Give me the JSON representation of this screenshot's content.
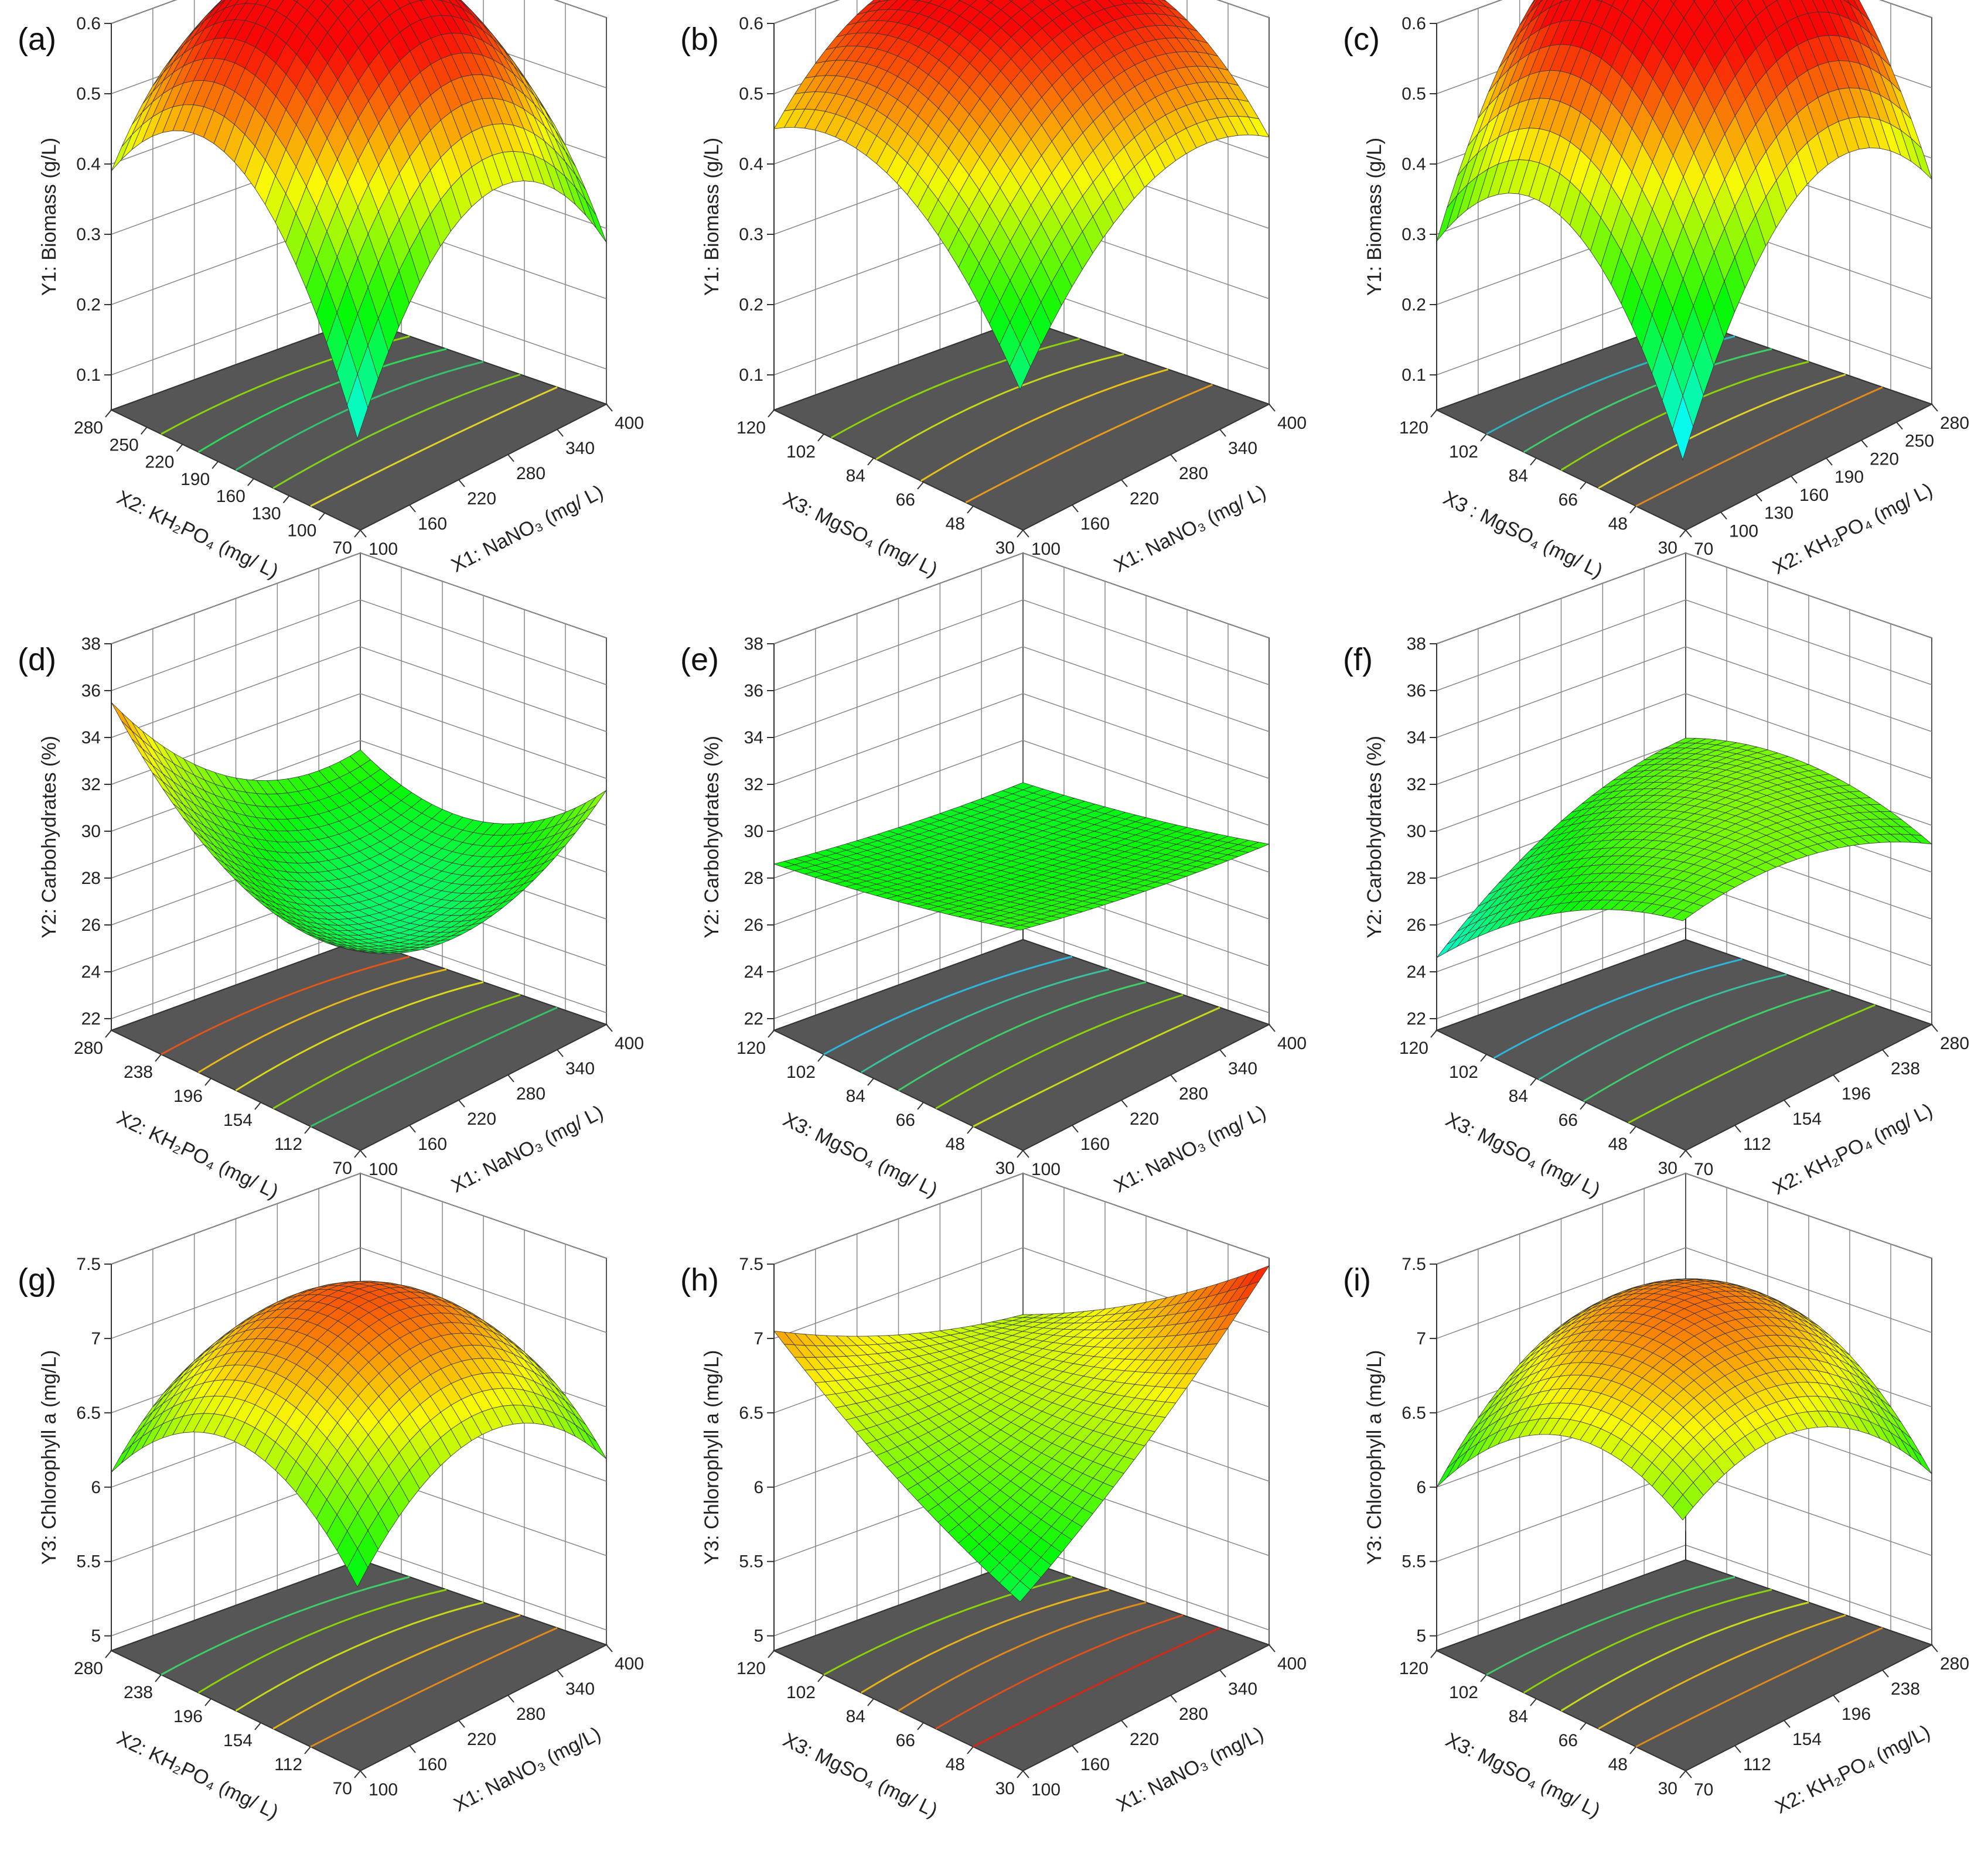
{
  "chart_data": [
    {
      "id": "a",
      "panel_label": "(a)",
      "type": "surface3d",
      "zlabel": "Y1: Biomass (g/L)",
      "z_ticks": [
        "0.1",
        "0.2",
        "0.3",
        "0.4",
        "0.5",
        "0.6"
      ],
      "zlim": [
        0.05,
        0.6
      ],
      "xlabel": "X1: NaNO₃ (mg/ L)",
      "x_ticks": [
        "100",
        "160",
        "220",
        "280",
        "340",
        "400"
      ],
      "ylabel": "X2: KH₂PO₄ (mg/ L)",
      "y_ticks": [
        "70",
        "100",
        "130",
        "160",
        "190",
        "220",
        "250",
        "280"
      ],
      "surface": {
        "corner_front": 0.13,
        "corner_right": 0.28,
        "corner_left": 0.39,
        "corner_back": 0.31,
        "center": 0.56
      },
      "contours": [
        "#8ad20a",
        "#2fd65a",
        "#38c070",
        "#7fd21c",
        "#e0d22a"
      ]
    },
    {
      "id": "b",
      "panel_label": "(b)",
      "type": "surface3d",
      "zlabel": "Y1: Biomass (g/L)",
      "z_ticks": [
        "0.1",
        "0.2",
        "0.3",
        "0.4",
        "0.5",
        "0.6"
      ],
      "zlim": [
        0.05,
        0.6
      ],
      "xlabel": "X1: NaNO₃ (mg/ L)",
      "x_ticks": [
        "100",
        "160",
        "220",
        "280",
        "340",
        "400"
      ],
      "ylabel": "X3: MgSO₄ (mg/ L)",
      "y_ticks": [
        "30",
        "48",
        "66",
        "84",
        "102",
        "120"
      ],
      "surface": {
        "corner_front": 0.2,
        "corner_right": 0.43,
        "corner_left": 0.45,
        "corner_back": 0.52,
        "center": 0.55
      },
      "contours": [
        "#8ad20a",
        "#c4d81a",
        "#e8c01a",
        "#e69a1c"
      ]
    },
    {
      "id": "c",
      "panel_label": "(c)",
      "type": "surface3d",
      "zlabel": "Y1: Biomass (g/L)",
      "z_ticks": [
        "0.1",
        "0.2",
        "0.3",
        "0.4",
        "0.5",
        "0.6"
      ],
      "zlim": [
        0.05,
        0.6
      ],
      "xlabel": "X2: KH₂PO₄ (mg/ L)",
      "x_ticks": [
        "70",
        "100",
        "130",
        "160",
        "190",
        "220",
        "250",
        "280"
      ],
      "ylabel": "X3 : MgSO₄ (mg/ L)",
      "y_ticks": [
        "30",
        "48",
        "66",
        "84",
        "102",
        "120"
      ],
      "surface": {
        "corner_front": 0.1,
        "corner_right": 0.37,
        "corner_left": 0.29,
        "corner_back": 0.57,
        "center": 0.6
      },
      "contours": [
        "#2fb5c0",
        "#40cc66",
        "#8ad20a",
        "#e0d22a",
        "#e08a1c"
      ]
    },
    {
      "id": "d",
      "panel_label": "(d)",
      "type": "surface3d",
      "zlabel": "Y2: Carbohydrates (%)",
      "z_ticks": [
        "22",
        "24",
        "26",
        "28",
        "30",
        "32",
        "34",
        "36",
        "38"
      ],
      "zlim": [
        21.5,
        38
      ],
      "xlabel": "X1: NaNO₃ (mg/ L)",
      "x_ticks": [
        "100",
        "160",
        "220",
        "280",
        "340",
        "400"
      ],
      "ylabel": "X2: KH₂PO₄ (mg/ L)",
      "y_ticks": [
        "70",
        "112",
        "154",
        "196",
        "238",
        "280"
      ],
      "surface": {
        "corner_front": 28.5,
        "corner_right": 31.5,
        "corner_left": 35.5,
        "corner_back": 29.6,
        "center": 28.2
      },
      "contours": [
        "#e0561a",
        "#e6b81a",
        "#d8d81c",
        "#8ad20a",
        "#38c064"
      ]
    },
    {
      "id": "e",
      "panel_label": "(e)",
      "type": "surface3d",
      "zlabel": "Y2: Carbohydrates (%)",
      "z_ticks": [
        "22",
        "24",
        "26",
        "28",
        "30",
        "32",
        "34",
        "36",
        "38"
      ],
      "zlim": [
        21.5,
        38
      ],
      "xlabel": "X1: NaNO₃ (mg/ L)",
      "x_ticks": [
        "100",
        "160",
        "220",
        "280",
        "340",
        "400"
      ],
      "ylabel": "X3: MgSO₄ (mg/ L)",
      "y_ticks": [
        "30",
        "48",
        "66",
        "84",
        "102",
        "120"
      ],
      "surface": {
        "corner_front": 29.4,
        "corner_right": 29.2,
        "corner_left": 28.6,
        "corner_back": 28.2,
        "center": 28.6
      },
      "contours": [
        "#2fb5d8",
        "#38c0a0",
        "#40cc66",
        "#8ad20a",
        "#c8d81a"
      ]
    },
    {
      "id": "f",
      "panel_label": "(f)",
      "type": "surface3d",
      "zlabel": "Y2: Carbohydrates (%)",
      "z_ticks": [
        "22",
        "24",
        "26",
        "28",
        "30",
        "32",
        "34",
        "36",
        "38"
      ],
      "zlim": [
        21.5,
        38
      ],
      "xlabel": "X2: KH₂PO₄ (mg/ L)",
      "x_ticks": [
        "70",
        "112",
        "154",
        "196",
        "238",
        "280"
      ],
      "ylabel": "X3: MgSO₄ (mg/ L)",
      "y_ticks": [
        "30",
        "48",
        "66",
        "84",
        "102",
        "120"
      ],
      "surface": {
        "corner_front": 29.8,
        "corner_right": 29.2,
        "corner_left": 24.6,
        "corner_back": 30.1,
        "center": 30.0
      },
      "contours": [
        "#2fb5d8",
        "#38c0a0",
        "#40cc66",
        "#8ad20a"
      ]
    },
    {
      "id": "g",
      "panel_label": "(g)",
      "type": "surface3d",
      "zlabel": "Y3: Chlorophyll a (mg/L)",
      "z_ticks": [
        "5",
        "5.5",
        "6",
        "6.5",
        "7",
        "7.5"
      ],
      "zlim": [
        4.9,
        7.5
      ],
      "xlabel": "X1: NaNO₃ (mg/L)",
      "x_ticks": [
        "100",
        "160",
        "220",
        "280",
        "340",
        "400"
      ],
      "ylabel": "X2: KH₂PO₄ (mg/ L)",
      "y_ticks": [
        "70",
        "112",
        "154",
        "196",
        "238",
        "280"
      ],
      "surface": {
        "corner_front": 5.9,
        "corner_right": 6.15,
        "corner_left": 6.1,
        "corner_back": 6.15,
        "center": 6.9
      },
      "contours": [
        "#40cc66",
        "#8ad20a",
        "#c8d81a",
        "#e6b41a",
        "#e08a1c"
      ]
    },
    {
      "id": "h",
      "panel_label": "(h)",
      "type": "surface3d",
      "zlabel": "Y3: Chlorophyll a (mg/L)",
      "z_ticks": [
        "5",
        "5.5",
        "6",
        "6.5",
        "7",
        "7.5"
      ],
      "zlim": [
        4.9,
        7.5
      ],
      "xlabel": "X1: NaNO₃ (mg/L)",
      "x_ticks": [
        "100",
        "160",
        "220",
        "280",
        "340",
        "400"
      ],
      "ylabel": "X3: MgSO₄ (mg/ L)",
      "y_ticks": [
        "30",
        "48",
        "66",
        "84",
        "102",
        "120"
      ],
      "surface": {
        "corner_front": 5.8,
        "corner_right": 7.45,
        "corner_left": 7.05,
        "corner_back": 6.55,
        "center": 6.6
      },
      "contours": [
        "#8ad20a",
        "#e6b41a",
        "#e08a1c",
        "#e0501a",
        "#d82814"
      ]
    },
    {
      "id": "i",
      "panel_label": "(i)",
      "type": "surface3d",
      "zlabel": "Y3: Chlorophyll a (mg/L)",
      "z_ticks": [
        "5",
        "5.5",
        "6",
        "6.5",
        "7",
        "7.5"
      ],
      "zlim": [
        4.9,
        7.5
      ],
      "xlabel": "X2: KH₂PO₄ (mg/L)",
      "x_ticks": [
        "70",
        "112",
        "154",
        "196",
        "238",
        "280"
      ],
      "ylabel": "X3: MgSO₄ (mg/ L)",
      "y_ticks": [
        "30",
        "48",
        "66",
        "84",
        "102",
        "120"
      ],
      "surface": {
        "corner_front": 6.35,
        "corner_right": 6.05,
        "corner_left": 6.0,
        "corner_back": 6.65,
        "center": 6.9
      },
      "contours": [
        "#40cc66",
        "#8ad20a",
        "#c8d81a",
        "#e6b41a",
        "#e08a1c"
      ]
    }
  ]
}
